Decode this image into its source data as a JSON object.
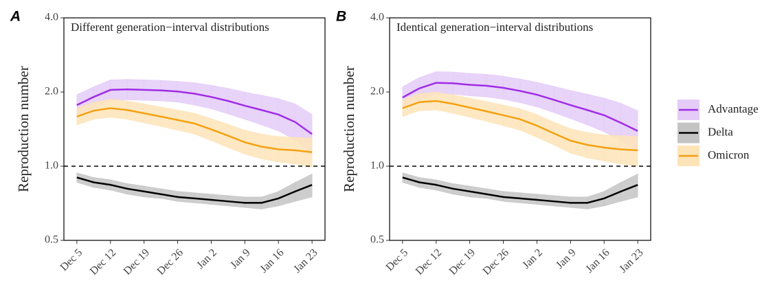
{
  "chart_data": [
    {
      "type": "line",
      "panel": "A",
      "title": "Different generation−interval distributions",
      "ylabel": "Reproduction number",
      "log_y": true,
      "ylim": [
        0.5,
        4
      ],
      "yticks": [
        0.5,
        {
          "value": 1,
          "label": "1.0"
        },
        {
          "value": 2,
          "label": "2.0"
        },
        {
          "value": 4,
          "label": "4.0"
        }
      ],
      "xlim": [
        -2.7,
        51.7
      ],
      "xticks": [
        {
          "value": 0,
          "label": "Dec 5"
        },
        {
          "value": 7,
          "label": "Dec 12"
        },
        {
          "value": 14,
          "label": "Dec 19"
        },
        {
          "value": 21,
          "label": "Dec 26"
        },
        {
          "value": 28,
          "label": "Jan 2"
        },
        {
          "value": 35,
          "label": "Jan 9"
        },
        {
          "value": 42,
          "label": "Jan 16"
        },
        {
          "value": 49,
          "label": "Jan 23"
        }
      ],
      "hline": 1,
      "x": [
        0,
        3.5,
        7,
        10.5,
        14,
        17.5,
        21,
        24.5,
        28,
        31.5,
        35,
        38.5,
        42,
        45.5,
        49
      ],
      "series": [
        {
          "name": "Advantage",
          "color": "#a02ce6",
          "band_color": "#e4cbf8",
          "values": [
            1.77,
            1.91,
            2.04,
            2.05,
            2.04,
            2.03,
            2.01,
            1.97,
            1.91,
            1.84,
            1.76,
            1.69,
            1.62,
            1.51,
            1.35
          ],
          "lower": [
            1.61,
            1.73,
            1.85,
            1.86,
            1.85,
            1.84,
            1.82,
            1.77,
            1.71,
            1.63,
            1.55,
            1.47,
            1.39,
            1.28,
            1.12
          ],
          "upper": [
            1.95,
            2.1,
            2.24,
            2.25,
            2.24,
            2.23,
            2.21,
            2.18,
            2.13,
            2.07,
            2.0,
            1.94,
            1.88,
            1.79,
            1.62
          ]
        },
        {
          "name": "Delta",
          "color": "#000000",
          "band_color": "#c4c4c4",
          "values": [
            0.9,
            0.86,
            0.84,
            0.81,
            0.79,
            0.77,
            0.75,
            0.74,
            0.73,
            0.72,
            0.71,
            0.71,
            0.74,
            0.79,
            0.84
          ],
          "lower": [
            0.86,
            0.82,
            0.8,
            0.77,
            0.75,
            0.74,
            0.72,
            0.71,
            0.7,
            0.69,
            0.68,
            0.67,
            0.69,
            0.72,
            0.75
          ],
          "upper": [
            0.94,
            0.9,
            0.88,
            0.85,
            0.83,
            0.81,
            0.79,
            0.78,
            0.77,
            0.76,
            0.75,
            0.75,
            0.79,
            0.86,
            0.93
          ]
        },
        {
          "name": "Omicron",
          "color": "#f5a00f",
          "band_color": "#fde4b8",
          "values": [
            1.59,
            1.68,
            1.72,
            1.69,
            1.64,
            1.59,
            1.54,
            1.49,
            1.41,
            1.33,
            1.25,
            1.2,
            1.17,
            1.16,
            1.14
          ],
          "lower": [
            1.47,
            1.55,
            1.58,
            1.55,
            1.5,
            1.45,
            1.4,
            1.35,
            1.27,
            1.19,
            1.12,
            1.07,
            1.04,
            1.02,
            0.99
          ],
          "upper": [
            1.72,
            1.82,
            1.87,
            1.84,
            1.79,
            1.74,
            1.69,
            1.64,
            1.56,
            1.48,
            1.4,
            1.35,
            1.32,
            1.31,
            1.3
          ]
        }
      ]
    },
    {
      "type": "line",
      "panel": "B",
      "title": "Identical generation−interval distributions",
      "ylabel": "Reproduction number",
      "log_y": true,
      "ylim": [
        0.5,
        4
      ],
      "yticks": [
        0.5,
        {
          "value": 1,
          "label": "1.0"
        },
        {
          "value": 2,
          "label": "2.0"
        },
        {
          "value": 4,
          "label": "4.0"
        }
      ],
      "xlim": [
        -2.7,
        51.7
      ],
      "xticks": [
        {
          "value": 0,
          "label": "Dec 5"
        },
        {
          "value": 7,
          "label": "Dec 12"
        },
        {
          "value": 14,
          "label": "Dec 19"
        },
        {
          "value": 21,
          "label": "Dec 26"
        },
        {
          "value": 28,
          "label": "Jan 2"
        },
        {
          "value": 35,
          "label": "Jan 9"
        },
        {
          "value": 42,
          "label": "Jan 16"
        },
        {
          "value": 49,
          "label": "Jan 23"
        }
      ],
      "hline": 1,
      "x": [
        0,
        3.5,
        7,
        10.5,
        14,
        17.5,
        21,
        24.5,
        28,
        31.5,
        35,
        38.5,
        42,
        45.5,
        49
      ],
      "series": [
        {
          "name": "Advantage",
          "color": "#a02ce6",
          "band_color": "#e4cbf8",
          "values": [
            1.9,
            2.07,
            2.18,
            2.17,
            2.14,
            2.12,
            2.08,
            2.02,
            1.95,
            1.86,
            1.77,
            1.69,
            1.61,
            1.5,
            1.39
          ],
          "lower": [
            1.72,
            1.87,
            1.97,
            1.96,
            1.93,
            1.91,
            1.87,
            1.81,
            1.74,
            1.65,
            1.56,
            1.47,
            1.38,
            1.27,
            1.15
          ],
          "upper": [
            2.1,
            2.29,
            2.42,
            2.41,
            2.38,
            2.36,
            2.32,
            2.26,
            2.19,
            2.11,
            2.03,
            1.96,
            1.89,
            1.8,
            1.68
          ]
        },
        {
          "name": "Delta",
          "color": "#000000",
          "band_color": "#c4c4c4",
          "values": [
            0.9,
            0.86,
            0.84,
            0.81,
            0.79,
            0.77,
            0.75,
            0.74,
            0.73,
            0.72,
            0.71,
            0.71,
            0.74,
            0.79,
            0.84
          ],
          "lower": [
            0.86,
            0.82,
            0.8,
            0.77,
            0.75,
            0.74,
            0.72,
            0.71,
            0.7,
            0.69,
            0.68,
            0.67,
            0.69,
            0.72,
            0.75
          ],
          "upper": [
            0.94,
            0.9,
            0.88,
            0.85,
            0.83,
            0.81,
            0.79,
            0.78,
            0.77,
            0.76,
            0.75,
            0.75,
            0.79,
            0.86,
            0.93
          ]
        },
        {
          "name": "Omicron",
          "color": "#f5a00f",
          "band_color": "#fde4b8",
          "values": [
            1.72,
            1.82,
            1.84,
            1.79,
            1.73,
            1.67,
            1.61,
            1.55,
            1.46,
            1.36,
            1.27,
            1.22,
            1.19,
            1.17,
            1.16
          ],
          "lower": [
            1.59,
            1.68,
            1.69,
            1.64,
            1.58,
            1.52,
            1.46,
            1.4,
            1.31,
            1.22,
            1.13,
            1.08,
            1.05,
            1.02,
            1.0
          ],
          "upper": [
            1.86,
            1.97,
            2.0,
            1.95,
            1.89,
            1.83,
            1.77,
            1.71,
            1.62,
            1.51,
            1.42,
            1.37,
            1.34,
            1.33,
            1.32
          ]
        }
      ]
    }
  ]
}
